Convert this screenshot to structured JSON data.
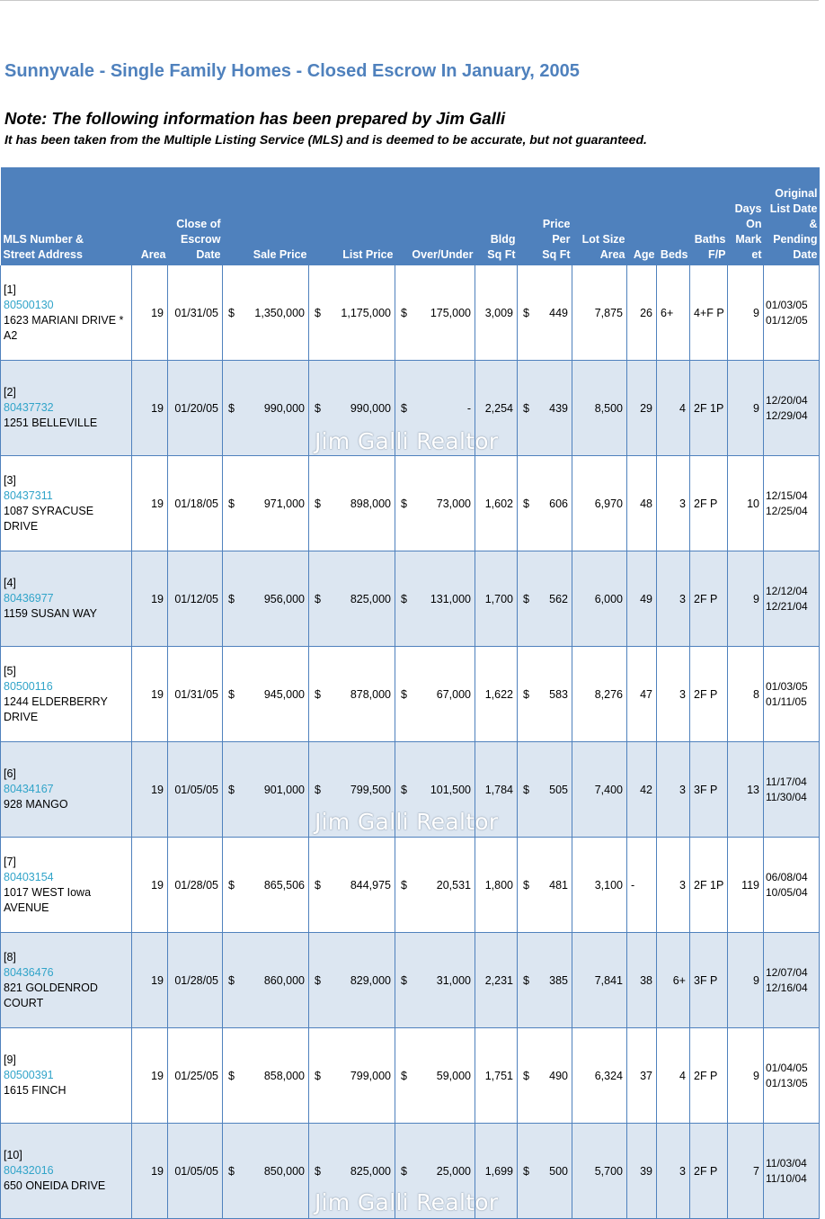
{
  "title": "Sunnyvale - Single Family Homes - Closed Escrow In January, 2005",
  "note_line1": "Note:  The following information has been prepared by Jim Galli",
  "note_line2": "It has been taken from the Multiple Listing Service (MLS) and is deemed to be accurate, but not guaranteed.",
  "watermark": "Jim Galli Realtor",
  "headers": {
    "address": [
      "MLS Number &",
      "Street Address"
    ],
    "area": [
      "Area"
    ],
    "close": [
      "Close of",
      "Escrow",
      "Date"
    ],
    "sale": [
      "Sale Price"
    ],
    "list": [
      "List Price"
    ],
    "over": [
      "Over/Under"
    ],
    "bldg": [
      "Bldg",
      "Sq Ft"
    ],
    "ppsf": [
      "Price",
      "Per",
      "Sq Ft"
    ],
    "lot": [
      "Lot Size",
      "Area"
    ],
    "age": [
      "Age"
    ],
    "beds": [
      "Beds"
    ],
    "baths": [
      "Baths",
      "F/P"
    ],
    "dom": [
      "Days",
      "On",
      "Mark",
      "et"
    ],
    "orig": [
      "Original",
      "List Date",
      "&",
      "Pending",
      "Date"
    ]
  },
  "rows": [
    {
      "idx": "[1]",
      "mls": "80500130",
      "street": "1623 MARIANI DRIVE * A2",
      "area": "19",
      "close": "01/31/05",
      "sale": "1,350,000",
      "list": "1,175,000",
      "over": "175,000",
      "bldg": "3,009",
      "ppsf": "449",
      "lot": "7,875",
      "age": "26",
      "beds": "6+",
      "baths": "4+F P",
      "dom": "9",
      "list_date": "01/03/05",
      "pending_date": "01/12/05"
    },
    {
      "idx": "[2]",
      "mls": "80437732",
      "street": "1251 BELLEVILLE",
      "area": "19",
      "close": "01/20/05",
      "sale": "990,000",
      "list": "990,000",
      "over": "-",
      "bldg": "2,254",
      "ppsf": "439",
      "lot": "8,500",
      "age": "29",
      "beds": "4",
      "baths": "2F 1P",
      "dom": "9",
      "list_date": "12/20/04",
      "pending_date": "12/29/04"
    },
    {
      "idx": "[3]",
      "mls": "80437311",
      "street": "1087 SYRACUSE DRIVE",
      "area": "19",
      "close": "01/18/05",
      "sale": "971,000",
      "list": "898,000",
      "over": "73,000",
      "bldg": "1,602",
      "ppsf": "606",
      "lot": "6,970",
      "age": "48",
      "beds": "3",
      "baths": "2F P",
      "dom": "10",
      "list_date": "12/15/04",
      "pending_date": "12/25/04"
    },
    {
      "idx": "[4]",
      "mls": "80436977",
      "street": "1159 SUSAN WAY",
      "area": "19",
      "close": "01/12/05",
      "sale": "956,000",
      "list": "825,000",
      "over": "131,000",
      "bldg": "1,700",
      "ppsf": "562",
      "lot": "6,000",
      "age": "49",
      "beds": "3",
      "baths": "2F P",
      "dom": "9",
      "list_date": "12/12/04",
      "pending_date": "12/21/04"
    },
    {
      "idx": "[5]",
      "mls": "80500116",
      "street": "1244 ELDERBERRY DRIVE",
      "area": "19",
      "close": "01/31/05",
      "sale": "945,000",
      "list": "878,000",
      "over": "67,000",
      "bldg": "1,622",
      "ppsf": "583",
      "lot": "8,276",
      "age": "47",
      "beds": "3",
      "baths": "2F P",
      "dom": "8",
      "list_date": "01/03/05",
      "pending_date": "01/11/05"
    },
    {
      "idx": "[6]",
      "mls": "80434167",
      "street": "928 MANGO",
      "area": "19",
      "close": "01/05/05",
      "sale": "901,000",
      "list": "799,500",
      "over": "101,500",
      "bldg": "1,784",
      "ppsf": "505",
      "lot": "7,400",
      "age": "42",
      "beds": "3",
      "baths": "3F P",
      "dom": "13",
      "list_date": "11/17/04",
      "pending_date": "11/30/04"
    },
    {
      "idx": "[7]",
      "mls": "80403154",
      "street": "1017 WEST Iowa AVENUE",
      "area": "19",
      "close": "01/28/05",
      "sale": "865,506",
      "list": "844,975",
      "over": "20,531",
      "bldg": "1,800",
      "ppsf": "481",
      "lot": "3,100",
      "age": "-",
      "beds": "3",
      "baths": "2F 1P",
      "dom": "119",
      "list_date": "06/08/04",
      "pending_date": "10/05/04"
    },
    {
      "idx": "[8]",
      "mls": "80436476",
      "street": "821 GOLDENROD COURT",
      "area": "19",
      "close": "01/28/05",
      "sale": "860,000",
      "list": "829,000",
      "over": "31,000",
      "bldg": "2,231",
      "ppsf": "385",
      "lot": "7,841",
      "age": "38",
      "beds": "6+",
      "baths": "3F P",
      "dom": "9",
      "list_date": "12/07/04",
      "pending_date": "12/16/04"
    },
    {
      "idx": "[9]",
      "mls": "80500391",
      "street": "1615 FINCH",
      "area": "19",
      "close": "01/25/05",
      "sale": "858,000",
      "list": "799,000",
      "over": "59,000",
      "bldg": "1,751",
      "ppsf": "490",
      "lot": "6,324",
      "age": "37",
      "beds": "4",
      "baths": "2F P",
      "dom": "9",
      "list_date": "01/04/05",
      "pending_date": "01/13/05"
    },
    {
      "idx": "[10]",
      "mls": "80432016",
      "street": "650 ONEIDA DRIVE",
      "area": "19",
      "close": "01/05/05",
      "sale": "850,000",
      "list": "825,000",
      "over": "25,000",
      "bldg": "1,699",
      "ppsf": "500",
      "lot": "5,700",
      "age": "39",
      "beds": "3",
      "baths": "2F P",
      "dom": "7",
      "list_date": "11/03/04",
      "pending_date": "11/10/04"
    }
  ]
}
